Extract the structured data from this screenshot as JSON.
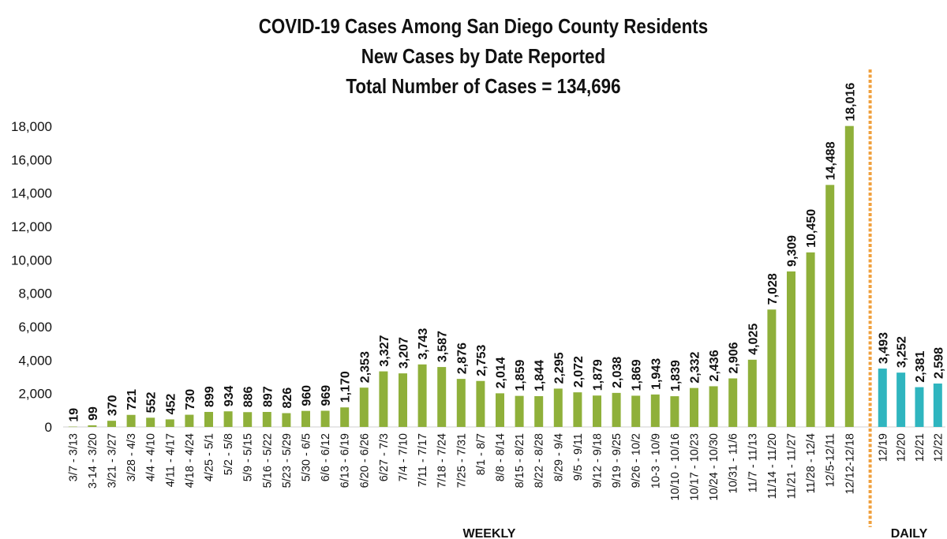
{
  "chart_data": {
    "type": "bar",
    "title": "COVID-19 Cases Among San Diego County Residents",
    "subtitle": "New Cases by Date Reported",
    "total_line": "Total Number of Cases = 134,696",
    "xlabel": "",
    "ylabel": "",
    "ylim": [
      0,
      18000
    ],
    "yticks": [
      0,
      2000,
      4000,
      6000,
      8000,
      10000,
      12000,
      14000,
      16000,
      18000
    ],
    "ytick_labels": [
      "0",
      "2,000",
      "4,000",
      "6,000",
      "8,000",
      "10,000",
      "12,000",
      "14,000",
      "16,000",
      "18,000"
    ],
    "grid": false,
    "series": [
      {
        "name": "Weekly",
        "section_label": "WEEKLY",
        "color": "#8fb03a",
        "categories": [
          "3/7 - 3/13",
          "3-14 - 3/20",
          "3/21 - 3/27",
          "3/28 - 4/3",
          "4/4 - 4/10",
          "4/11 - 4/17",
          "4/18 - 4/24",
          "4/25 - 5/1",
          "5/2 - 5/8",
          "5/9 - 5/15",
          "5/16 - 5/22",
          "5/23 - 5/29",
          "5/30 - 6/5",
          "6/6 - 6/12",
          "6/13 - 6/19",
          "6/20 - 6/26",
          "6/27 - 7/3",
          "7/4 - 7/10",
          "7/11 - 7/17",
          "7/18 - 7/24",
          "7/25 - 7/31",
          "8/1 - 8/7",
          "8/8 - 8/14",
          "8/15 - 8/21",
          "8/22 - 8/28",
          "8/29 - 9/4",
          "9/5 - 9/11",
          "9/12 - 9/18",
          "9/19 - 9/25",
          "9/26 - 10/2",
          "10-3 - 10/9",
          "10/10 - 10/16",
          "10/17 - 10/23",
          "10/24 - 10/30",
          "10/31 - 11/6",
          "11/7 - 11/13",
          "11/14 - 11/20",
          "11/21 - 11/27",
          "11/28 - 12/4",
          "12/5-12/11",
          "12/12-12/18"
        ],
        "values": [
          19,
          99,
          370,
          721,
          552,
          452,
          730,
          899,
          934,
          886,
          897,
          826,
          960,
          969,
          1170,
          2353,
          3327,
          3207,
          3743,
          3587,
          2876,
          2753,
          2014,
          1859,
          1844,
          2295,
          2072,
          1879,
          2038,
          1869,
          1943,
          1839,
          2332,
          2436,
          2906,
          4025,
          7028,
          9309,
          10450,
          14488,
          18016
        ],
        "value_labels": [
          "19",
          "99",
          "370",
          "721",
          "552",
          "452",
          "730",
          "899",
          "934",
          "886",
          "897",
          "826",
          "960",
          "969",
          "1,170",
          "2,353",
          "3,327",
          "3,207",
          "3,743",
          "3,587",
          "2,876",
          "2,753",
          "2,014",
          "1,859",
          "1,844",
          "2,295",
          "2,072",
          "1,879",
          "2,038",
          "1,869",
          "1,943",
          "1,839",
          "2,332",
          "2,436",
          "2,906",
          "4,025",
          "7,028",
          "9,309",
          "10,450",
          "14,488",
          "18,016"
        ]
      },
      {
        "name": "Daily",
        "section_label": "DAILY",
        "color": "#2fb5bf",
        "categories": [
          "12/19",
          "12/20",
          "12/21",
          "12/22"
        ],
        "values": [
          3493,
          3252,
          2381,
          2598
        ],
        "value_labels": [
          "3,493",
          "3,252",
          "2,381",
          "2,598"
        ]
      }
    ],
    "divider": {
      "between": [
        "12/12-12/18",
        "12/19"
      ],
      "style": "dotted",
      "color": "#f0a03c"
    },
    "axis_color": "#d9d9d9",
    "text_color": "#111111"
  }
}
